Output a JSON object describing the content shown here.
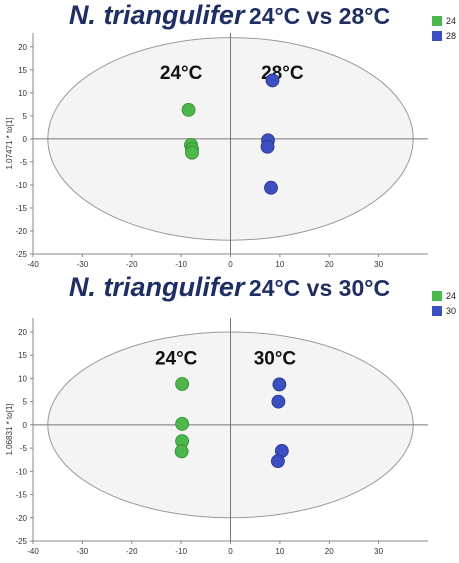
{
  "chart_data": [
    {
      "type": "scatter",
      "title": {
        "species": "N. triangulifer",
        "rest": "24°C vs 28°C"
      },
      "ylabel": "1.07471 * to[1]",
      "xlim": [
        -40,
        40
      ],
      "ylim": [
        -25,
        23
      ],
      "xticks": [
        -40,
        -30,
        -20,
        -10,
        0,
        10,
        20,
        30
      ],
      "yticks": [
        20,
        15,
        10,
        5,
        0,
        -5,
        -10,
        -15,
        -20,
        -25
      ],
      "ellipse": {
        "rx": 37,
        "ry": 22
      },
      "series": [
        {
          "name": "24",
          "color": "#4cb84c",
          "label": "24°C",
          "label_pos": [
            -10,
            13
          ],
          "points": [
            [
              -8.5,
              6.3
            ],
            [
              -8.0,
              -1.3
            ],
            [
              -7.8,
              -2.2
            ],
            [
              -7.8,
              -3.0
            ]
          ]
        },
        {
          "name": "28",
          "color": "#3c4fc0",
          "label": "28°C",
          "label_pos": [
            10.5,
            13
          ],
          "points": [
            [
              8.5,
              12.7
            ],
            [
              7.6,
              -0.3
            ],
            [
              7.5,
              -1.7
            ],
            [
              8.2,
              -10.6
            ]
          ]
        }
      ]
    },
    {
      "type": "scatter",
      "title": {
        "species": "N. triangulifer",
        "rest": "24°C vs 30°C"
      },
      "ylabel": "1.06831 * to[1]",
      "xlim": [
        -40,
        40
      ],
      "ylim": [
        -25,
        23
      ],
      "xticks": [
        -40,
        -30,
        -20,
        -10,
        0,
        10,
        20,
        30
      ],
      "yticks": [
        20,
        15,
        10,
        5,
        0,
        -5,
        -10,
        -15,
        -20,
        -25
      ],
      "ellipse": {
        "rx": 37,
        "ry": 20
      },
      "series": [
        {
          "name": "24",
          "color": "#4cb84c",
          "label": "24°C",
          "label_pos": [
            -11,
            13
          ],
          "points": [
            [
              -9.8,
              8.8
            ],
            [
              -9.8,
              0.2
            ],
            [
              -9.8,
              -3.5
            ],
            [
              -9.9,
              -5.7
            ]
          ]
        },
        {
          "name": "30",
          "color": "#3c4fc0",
          "label": "30°C",
          "label_pos": [
            9,
            13
          ],
          "points": [
            [
              9.9,
              8.7
            ],
            [
              9.7,
              5.0
            ],
            [
              10.4,
              -5.6
            ],
            [
              9.6,
              -7.8
            ]
          ]
        }
      ]
    }
  ]
}
